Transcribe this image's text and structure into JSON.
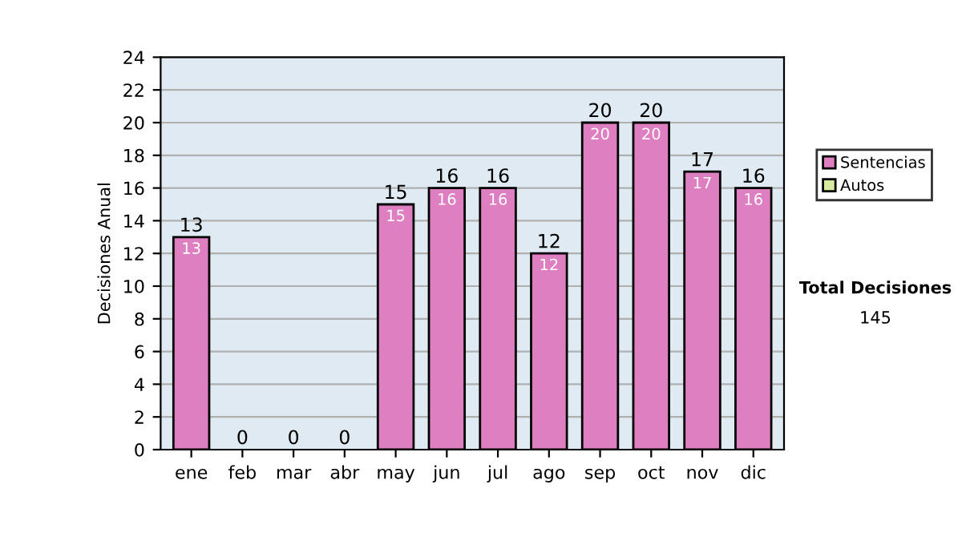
{
  "chart_data": {
    "type": "bar",
    "stacked": true,
    "ylabel": "Decisiones Anual",
    "categories": [
      "ene",
      "feb",
      "mar",
      "abr",
      "may",
      "jun",
      "jul",
      "ago",
      "sep",
      "oct",
      "nov",
      "dic"
    ],
    "series": [
      {
        "name": "Sentencias",
        "color": "#dd7fc0",
        "values": [
          13,
          0,
          0,
          0,
          15,
          16,
          16,
          12,
          20,
          20,
          17,
          16
        ],
        "value_labels": [
          "13",
          null,
          null,
          null,
          "15",
          "16",
          "16",
          "12",
          "20",
          "20",
          "17",
          "16"
        ]
      },
      {
        "name": "Autos",
        "color": "#d6eaa0",
        "values": [
          0,
          0,
          0,
          0,
          0,
          0,
          0,
          0,
          0,
          0,
          0,
          0
        ]
      }
    ],
    "totals": [
      "13",
      "0",
      "0",
      "0",
      "15",
      "16",
      "16",
      "12",
      "20",
      "20",
      "17",
      "16"
    ],
    "ylim": [
      0,
      24
    ],
    "yticks": [
      0,
      2,
      4,
      6,
      8,
      10,
      12,
      14,
      16,
      18,
      20,
      22,
      24
    ],
    "grid": "y",
    "legend": "right",
    "annotations": [
      "Total Decisiones",
      "145"
    ]
  }
}
